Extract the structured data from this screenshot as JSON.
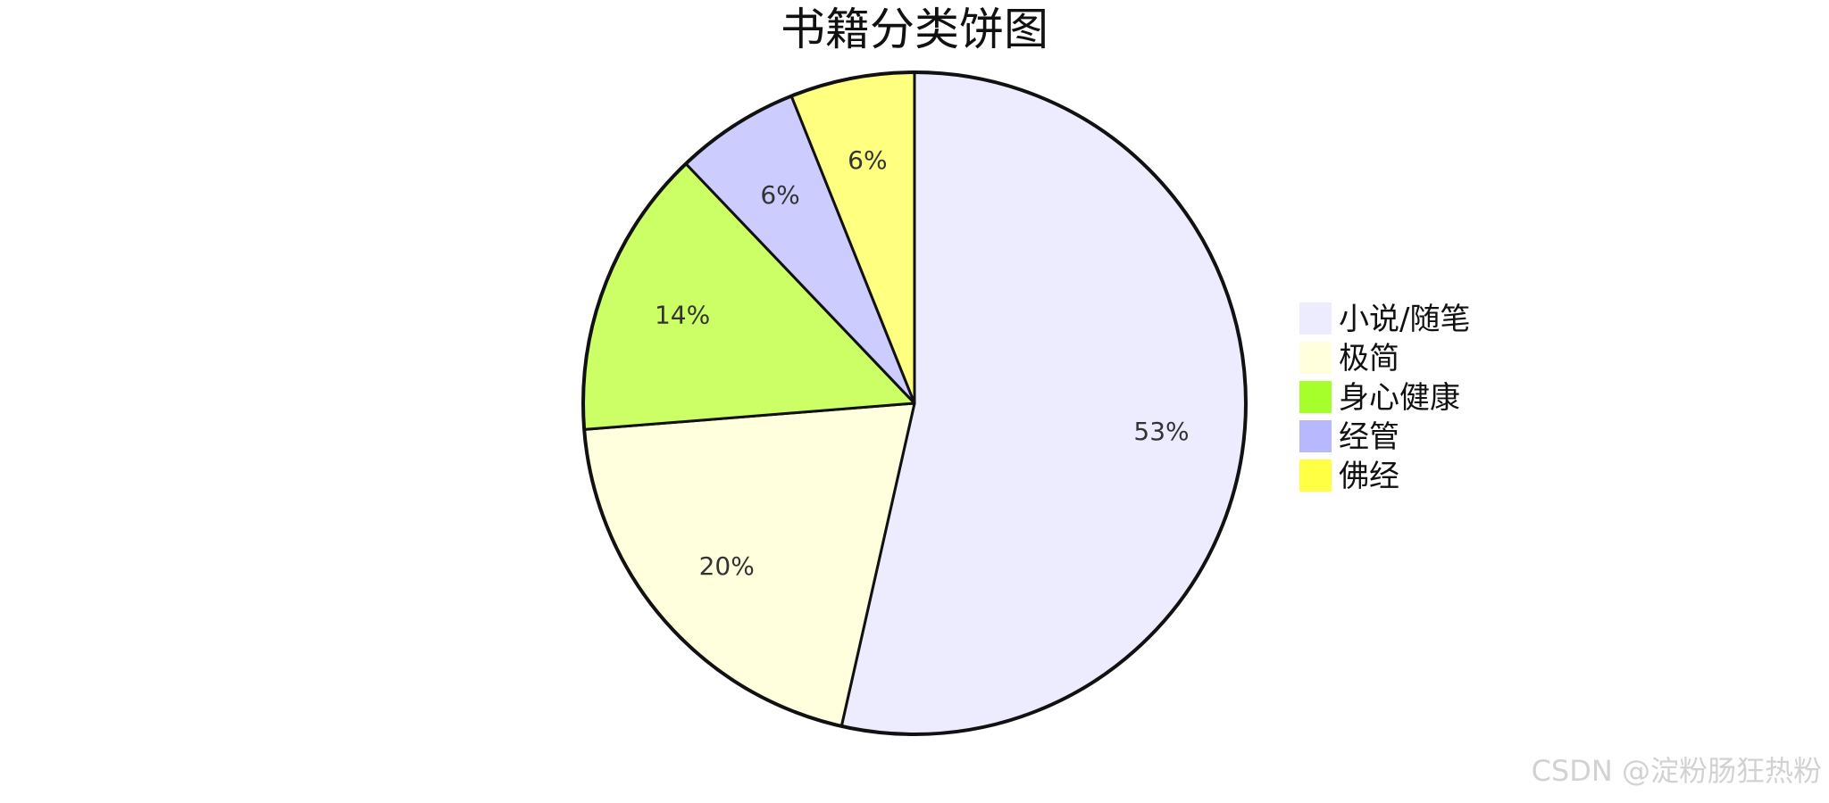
{
  "chart_data": {
    "type": "pie",
    "title": "书籍分类饼图",
    "slices": [
      {
        "label": "小说/随笔",
        "value": 53,
        "display": "53%",
        "fill": "#ececfe",
        "legend_color": "#ececfe"
      },
      {
        "label": "极简",
        "value": 20,
        "display": "20%",
        "fill": "#ffffde",
        "legend_color": "#ffffde"
      },
      {
        "label": "身心健康",
        "value": 14,
        "display": "14%",
        "fill": "#ccff66",
        "legend_color": "#a6ff2a"
      },
      {
        "label": "经管",
        "value": 6,
        "display": "6%",
        "fill": "#ccccff",
        "legend_color": "#b8b8ff"
      },
      {
        "label": "佛经",
        "value": 6,
        "display": "6%",
        "fill": "#ffff80",
        "legend_color": "#ffff44"
      }
    ],
    "legend_position": "right",
    "start_angle": "12 o'clock",
    "direction": "clockwise"
  },
  "watermark": "CSDN @淀粉肠狂热粉",
  "colors": {
    "stroke": "#111111",
    "background": "#ffffff"
  }
}
